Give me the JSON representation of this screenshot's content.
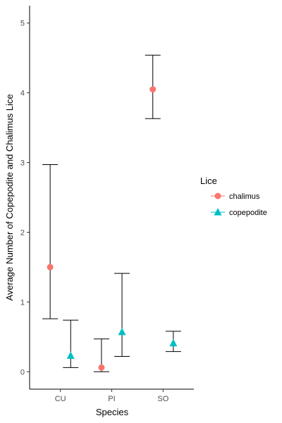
{
  "chart_data": {
    "type": "scatter",
    "categories": [
      "CU",
      "PI",
      "SO"
    ],
    "xlabel": "Species",
    "ylabel": "Average Number of Copepodite and Chalimus Lice",
    "ylim": [
      -0.25,
      5.25
    ],
    "yticks": [
      0,
      1,
      2,
      3,
      4,
      5
    ],
    "grid": false,
    "legend": {
      "title": "Lice",
      "position": "right"
    },
    "series": [
      {
        "name": "chalimus",
        "marker": "circle",
        "color": "#F8766D",
        "values": [
          1.5,
          0.06,
          4.05
        ],
        "error_low": [
          0.76,
          0.0,
          3.63
        ],
        "error_high": [
          2.97,
          0.47,
          4.54
        ]
      },
      {
        "name": "copepodite",
        "marker": "triangle",
        "color": "#00BFC4",
        "values": [
          0.23,
          0.57,
          0.41
        ],
        "error_low": [
          0.06,
          0.22,
          0.29
        ],
        "error_high": [
          0.74,
          1.41,
          0.58
        ]
      }
    ]
  }
}
